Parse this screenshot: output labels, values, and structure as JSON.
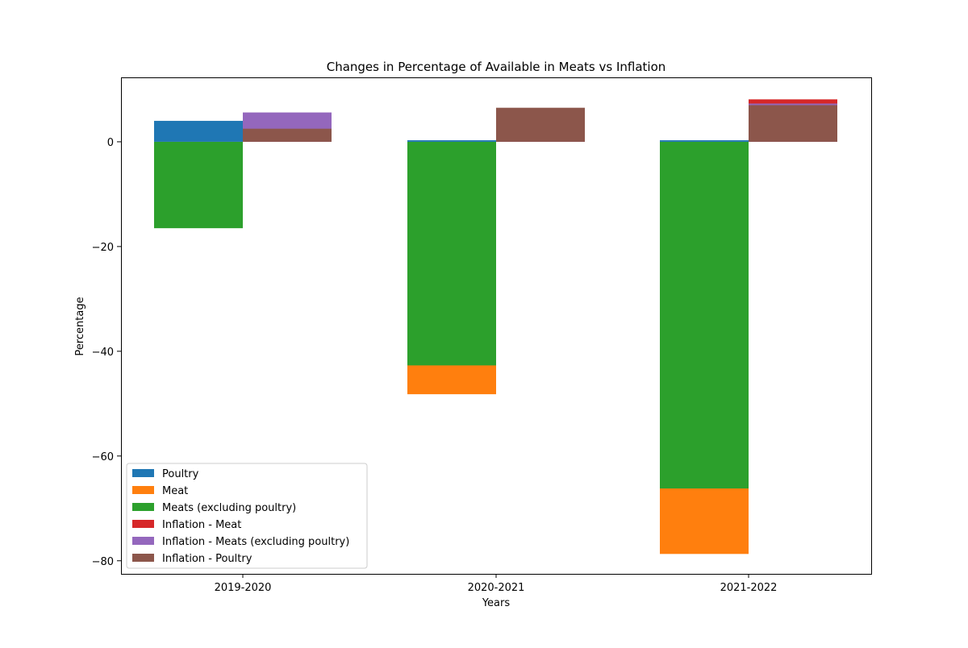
{
  "chart_data": {
    "type": "bar",
    "title": "Changes in Percentage of Available in Meats vs Inflation",
    "xlabel": "Years",
    "ylabel": "Percentage",
    "categories": [
      "2019-2020",
      "2020-2021",
      "2021-2022"
    ],
    "ylim": [
      -82.5,
      12.3
    ],
    "yticks": [
      0,
      -20,
      -40,
      -60,
      -80
    ],
    "ytick_labels": [
      "0",
      "−20",
      "−40",
      "−60",
      "−80"
    ],
    "grid": false,
    "legend_position": "lower-left",
    "layers": [
      {
        "group": "availability",
        "name": "Meat",
        "color": "#ff7f0e",
        "values": [
          -2.0,
          -48.2,
          -78.7
        ]
      },
      {
        "group": "availability",
        "name": "Meats (excluding poultry)",
        "color": "#2ca02c",
        "values": [
          -16.5,
          -42.7,
          -66.2
        ]
      },
      {
        "group": "availability",
        "name": "Poultry",
        "color": "#1f77b4",
        "values": [
          4.0,
          0.3,
          0.3
        ]
      },
      {
        "group": "inflation",
        "name": "Inflation - Meat",
        "color": "#d62728",
        "values": [
          2.4,
          6.4,
          8.1
        ]
      },
      {
        "group": "inflation",
        "name": "Inflation - Meats (excluding poultry)",
        "color": "#9467bd",
        "values": [
          5.6,
          6.4,
          7.3
        ]
      },
      {
        "group": "inflation",
        "name": "Inflation - Poultry",
        "color": "#8c564b",
        "values": [
          2.5,
          6.5,
          7.0
        ]
      }
    ],
    "legend": [
      {
        "name": "Poultry",
        "color": "#1f77b4"
      },
      {
        "name": "Meat",
        "color": "#ff7f0e"
      },
      {
        "name": "Meats (excluding poultry)",
        "color": "#2ca02c"
      },
      {
        "name": "Inflation - Meat",
        "color": "#d62728"
      },
      {
        "name": "Inflation - Meats (excluding poultry)",
        "color": "#9467bd"
      },
      {
        "name": "Inflation - Poultry",
        "color": "#8c564b"
      }
    ]
  }
}
